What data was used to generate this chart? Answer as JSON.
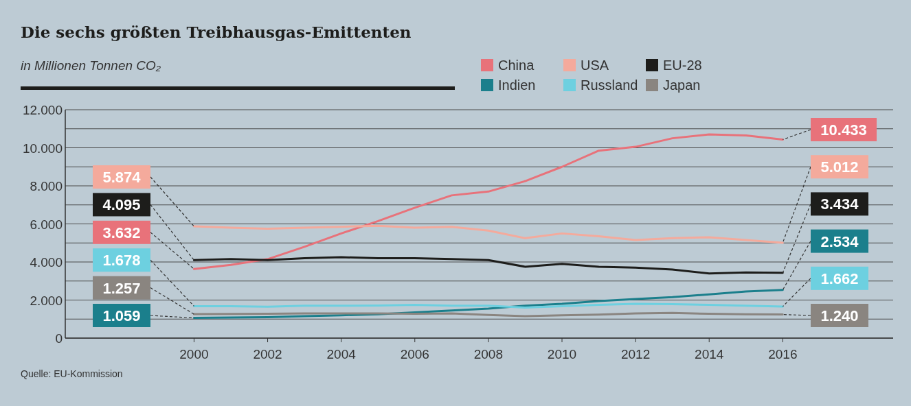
{
  "chart_data": {
    "type": "line",
    "title": "Die sechs größten Treibhausgas-Emittenten",
    "subtitle": "in Millionen Tonnen CO₂",
    "annotations": [
      "Quelle: EU-Kommission"
    ],
    "x": [
      2000,
      2001,
      2002,
      2003,
      2004,
      2005,
      2006,
      2007,
      2008,
      2009,
      2010,
      2011,
      2012,
      2013,
      2014,
      2015,
      2016
    ],
    "xlim": [
      1996.5,
      2019
    ],
    "xticks": [
      2000,
      2002,
      2004,
      2006,
      2008,
      2010,
      2012,
      2014,
      2016
    ],
    "ylim": [
      0,
      12000
    ],
    "yticks": [
      {
        "value": 0,
        "label": "0"
      },
      {
        "value": 1000,
        "label": null
      },
      {
        "value": 2000,
        "label": "2.000"
      },
      {
        "value": 3000,
        "label": null
      },
      {
        "value": 4000,
        "label": "4.000"
      },
      {
        "value": 5000,
        "label": null
      },
      {
        "value": 6000,
        "label": "6.000"
      },
      {
        "value": 7000,
        "label": null
      },
      {
        "value": 8000,
        "label": "8.000"
      },
      {
        "value": 9000,
        "label": null
      },
      {
        "value": 10000,
        "label": "10.000"
      },
      {
        "value": 11000,
        "label": null
      },
      {
        "value": 12000,
        "label": "12.000"
      }
    ],
    "grid": "y",
    "legend": "top right",
    "marker": "none",
    "line_style": "solid",
    "series": [
      {
        "name": "China",
        "color": "#e8727a",
        "values": [
          3632,
          3850,
          4150,
          4800,
          5500,
          6150,
          6850,
          7500,
          7700,
          8250,
          9000,
          9850,
          10050,
          10500,
          10700,
          10650,
          10433
        ],
        "value_labels": [
          "3.632",
          null,
          null,
          null,
          null,
          null,
          null,
          null,
          null,
          null,
          null,
          null,
          null,
          null,
          null,
          null,
          "10.433"
        ]
      },
      {
        "name": "USA",
        "color": "#f4aa9c",
        "values": [
          5874,
          5800,
          5750,
          5800,
          5850,
          5900,
          5800,
          5850,
          5650,
          5250,
          5500,
          5350,
          5150,
          5250,
          5300,
          5150,
          5012
        ],
        "value_labels": [
          "5.874",
          null,
          null,
          null,
          null,
          null,
          null,
          null,
          null,
          null,
          null,
          null,
          null,
          null,
          null,
          null,
          "5.012"
        ]
      },
      {
        "name": "EU-28",
        "color": "#1d1d1b",
        "values": [
          4095,
          4150,
          4100,
          4200,
          4250,
          4200,
          4200,
          4150,
          4100,
          3750,
          3900,
          3750,
          3700,
          3600,
          3400,
          3450,
          3434
        ],
        "value_labels": [
          "4.095",
          null,
          null,
          null,
          null,
          null,
          null,
          null,
          null,
          null,
          null,
          null,
          null,
          null,
          null,
          null,
          "3.434"
        ]
      },
      {
        "name": "Indien",
        "color": "#1b7f8c",
        "values": [
          1059,
          1080,
          1100,
          1150,
          1200,
          1250,
          1350,
          1450,
          1550,
          1700,
          1800,
          1950,
          2050,
          2150,
          2300,
          2450,
          2534
        ],
        "value_labels": [
          "1.059",
          null,
          null,
          null,
          null,
          null,
          null,
          null,
          null,
          null,
          null,
          null,
          null,
          null,
          null,
          null,
          "2.534"
        ]
      },
      {
        "name": "Russland",
        "color": "#6dd0e0",
        "values": [
          1678,
          1680,
          1650,
          1700,
          1700,
          1710,
          1750,
          1700,
          1700,
          1600,
          1680,
          1750,
          1800,
          1780,
          1750,
          1700,
          1662
        ],
        "value_labels": [
          "1.678",
          null,
          null,
          null,
          null,
          null,
          null,
          null,
          null,
          null,
          null,
          null,
          null,
          null,
          null,
          null,
          "1.662"
        ]
      },
      {
        "name": "Japan",
        "color": "#8a8580",
        "values": [
          1257,
          1270,
          1280,
          1300,
          1300,
          1300,
          1280,
          1300,
          1220,
          1150,
          1200,
          1230,
          1300,
          1320,
          1280,
          1250,
          1240
        ],
        "value_labels": [
          "1.257",
          null,
          null,
          null,
          null,
          null,
          null,
          null,
          null,
          null,
          null,
          null,
          null,
          null,
          null,
          null,
          "1.240"
        ]
      }
    ]
  }
}
